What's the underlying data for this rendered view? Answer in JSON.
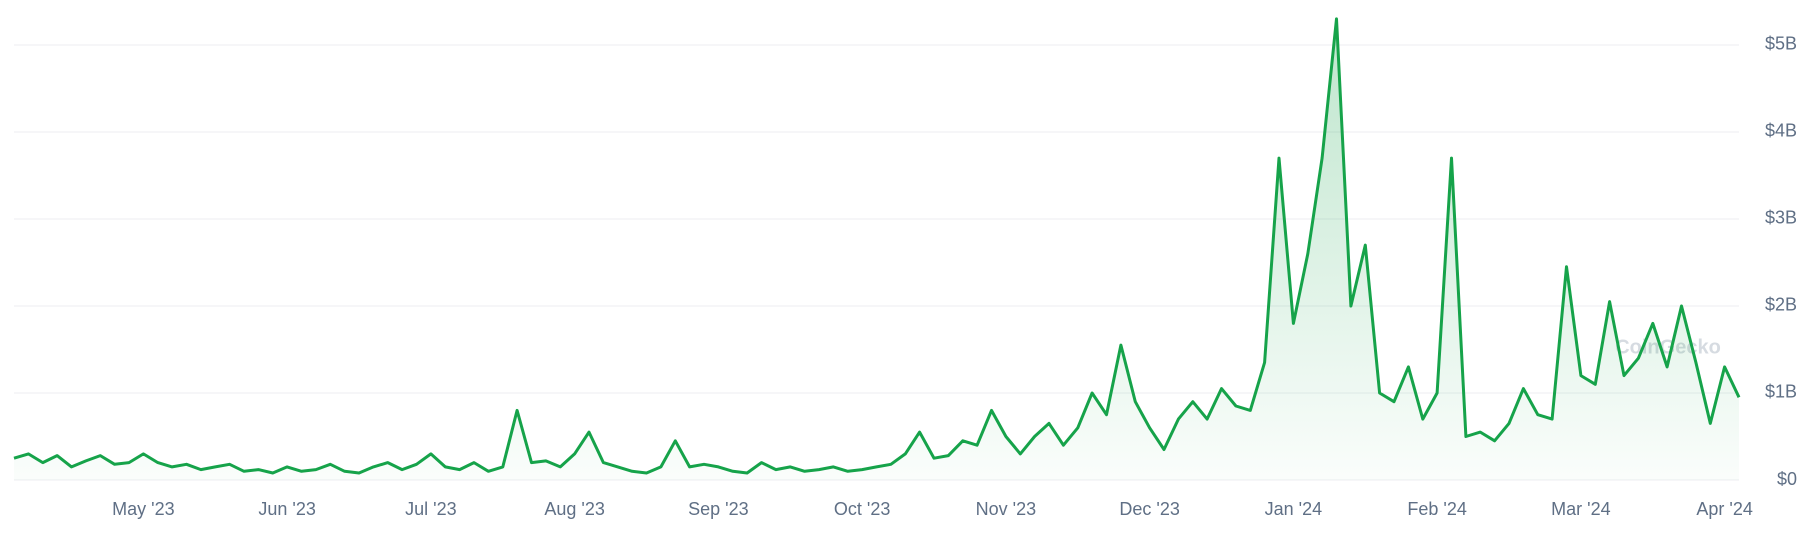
{
  "chart_data": {
    "type": "area",
    "watermark": "CoinGecko",
    "color": "#16a34a",
    "grid": true,
    "categories": [
      null,
      null,
      null,
      null,
      null,
      null,
      null,
      null,
      null,
      "May '23",
      null,
      null,
      null,
      null,
      null,
      null,
      null,
      null,
      null,
      "Jun '23",
      null,
      null,
      null,
      null,
      null,
      null,
      null,
      null,
      null,
      "Jul '23",
      null,
      null,
      null,
      null,
      null,
      null,
      null,
      null,
      null,
      "Aug '23",
      null,
      null,
      null,
      null,
      null,
      null,
      null,
      null,
      null,
      "Sep '23",
      null,
      null,
      null,
      null,
      null,
      null,
      null,
      null,
      null,
      "Oct '23",
      null,
      null,
      null,
      null,
      null,
      null,
      null,
      null,
      null,
      "Nov '23",
      null,
      null,
      null,
      null,
      null,
      null,
      null,
      null,
      null,
      "Dec '23",
      null,
      null,
      null,
      null,
      null,
      null,
      null,
      null,
      null,
      "Jan '24",
      null,
      null,
      null,
      null,
      null,
      null,
      null,
      null,
      null,
      "Feb '24",
      null,
      null,
      null,
      null,
      null,
      null,
      null,
      null,
      null,
      "Mar '24",
      null,
      null,
      null,
      null,
      null,
      null,
      null,
      null,
      null,
      "Apr '24",
      null
    ],
    "values": [
      0.25,
      0.3,
      0.2,
      0.28,
      0.15,
      0.22,
      0.28,
      0.18,
      0.2,
      0.3,
      0.2,
      0.15,
      0.18,
      0.12,
      0.15,
      0.18,
      0.1,
      0.12,
      0.08,
      0.15,
      0.1,
      0.12,
      0.18,
      0.1,
      0.08,
      0.15,
      0.2,
      0.12,
      0.18,
      0.3,
      0.15,
      0.12,
      0.2,
      0.1,
      0.15,
      0.8,
      0.2,
      0.22,
      0.15,
      0.3,
      0.55,
      0.2,
      0.15,
      0.1,
      0.08,
      0.15,
      0.45,
      0.15,
      0.18,
      0.15,
      0.1,
      0.08,
      0.2,
      0.12,
      0.15,
      0.1,
      0.12,
      0.15,
      0.1,
      0.12,
      0.15,
      0.18,
      0.3,
      0.55,
      0.25,
      0.28,
      0.45,
      0.4,
      0.8,
      0.5,
      0.3,
      0.5,
      0.65,
      0.4,
      0.6,
      1.0,
      0.75,
      1.55,
      0.9,
      0.6,
      0.35,
      0.7,
      0.9,
      0.7,
      1.05,
      0.85,
      0.8,
      1.35,
      3.7,
      1.8,
      2.6,
      3.7,
      5.3,
      2.0,
      2.7,
      1.0,
      0.9,
      1.3,
      0.7,
      1.0,
      3.7,
      0.5,
      0.55,
      0.45,
      0.65,
      1.05,
      0.75,
      0.7,
      2.45,
      1.2,
      1.1,
      2.05,
      1.2,
      1.4,
      1.8,
      1.3,
      2.0,
      1.35,
      0.65,
      1.3,
      0.95
    ],
    "ylim": [
      0,
      5.35
    ],
    "yticks": [
      {
        "value": 0,
        "label": "$0"
      },
      {
        "value": 1,
        "label": "$1B"
      },
      {
        "value": 2,
        "label": "$2B"
      },
      {
        "value": 3,
        "label": "$3B"
      },
      {
        "value": 4,
        "label": "$4B"
      },
      {
        "value": 5,
        "label": "$5B"
      }
    ]
  }
}
